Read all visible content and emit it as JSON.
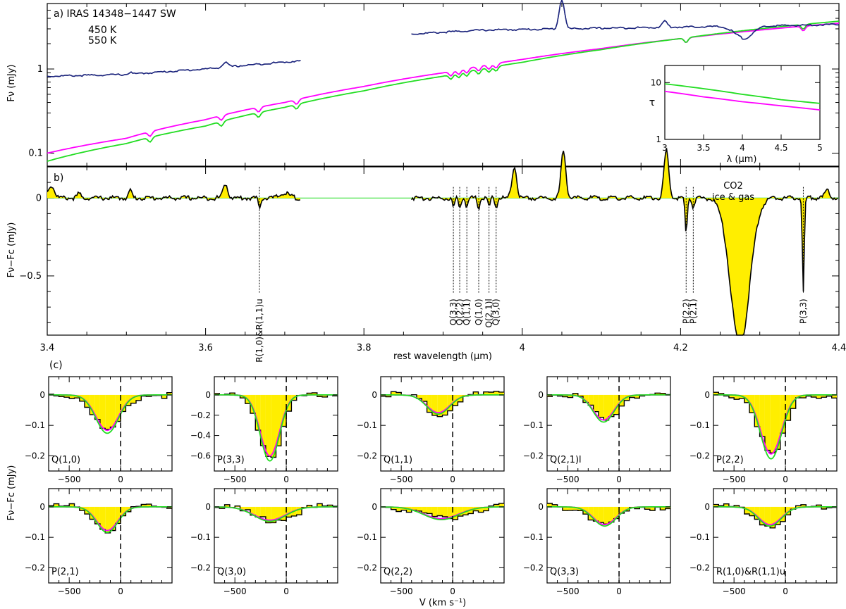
{
  "colors": {
    "c450": "#ff00ff",
    "c550": "#22dd22",
    "obs": "#1a237e",
    "fill": "#ffee00",
    "black": "#000000"
  },
  "panel_a": {
    "label": "a) IRAS 14348−1447 SW",
    "legend": [
      "450 K",
      "550 K"
    ],
    "ylabel": "Fν (mJy)"
  },
  "inset": {
    "ylabel": "τ",
    "xlabel": "λ (μm)"
  },
  "panel_b": {
    "label": "b)",
    "ylabel": "Fν−Fc (mJy)",
    "xlabel": "rest wavelength (μm)",
    "co2_label": [
      "CO2",
      "ice & gas"
    ]
  },
  "panel_c": {
    "label": "(c)",
    "ylabel": "Fν−Fc (mJy)",
    "xlabel": "V (km s⁻¹)"
  },
  "chart_data": [
    {
      "id": "a",
      "type": "line",
      "xlim": [
        3.4,
        4.4
      ],
      "yscale": "log",
      "ylim": [
        0.07,
        6
      ],
      "yticks": [
        0.1,
        1
      ],
      "yticklabels": [
        "0.1",
        "1"
      ],
      "series": [
        {
          "name": "450 K",
          "x": [
            3.4,
            3.5,
            3.6,
            3.7,
            3.8,
            3.9,
            4.0,
            4.1,
            4.2,
            4.3,
            4.4
          ],
          "y": [
            0.1,
            0.15,
            0.25,
            0.4,
            0.62,
            0.9,
            1.3,
            1.75,
            2.3,
            2.9,
            3.5
          ]
        },
        {
          "name": "550 K",
          "x": [
            3.4,
            3.5,
            3.6,
            3.7,
            3.8,
            3.9,
            4.0,
            4.1,
            4.2,
            4.3,
            4.4
          ],
          "y": [
            0.08,
            0.13,
            0.21,
            0.35,
            0.55,
            0.82,
            1.2,
            1.7,
            2.3,
            3.0,
            3.7
          ]
        },
        {
          "x": [
            3.4,
            3.5,
            3.6,
            3.72
          ],
          "y": [
            0.82,
            0.86,
            1.0,
            1.25
          ],
          "gap_after": true
        },
        {
          "x": [
            3.86,
            3.95,
            4.05,
            4.15,
            4.25,
            4.35,
            4.4
          ],
          "y": [
            2.6,
            2.9,
            3.0,
            3.1,
            3.2,
            3.3,
            3.4
          ]
        }
      ],
      "features": [
        {
          "x": 4.05,
          "peak": 6.5
        },
        {
          "x": 4.18,
          "peak": 3.5
        },
        {
          "x": 4.28,
          "trough": 2.2
        }
      ]
    },
    {
      "id": "inset",
      "type": "line",
      "xlim": [
        3,
        5
      ],
      "ylim": [
        1,
        20
      ],
      "yscale": "log",
      "xticks": [
        3,
        3.5,
        4,
        4.5,
        5
      ],
      "xticklabels": [
        "3",
        "3.5",
        "4",
        "4.5",
        "5"
      ],
      "yticks": [
        1,
        10
      ],
      "yticklabels": [
        "1",
        "10"
      ],
      "series": [
        {
          "name": "550 K",
          "x": [
            3,
            3.5,
            4,
            4.5,
            5
          ],
          "y": [
            9.5,
            7.8,
            6.2,
            5.0,
            4.3
          ]
        },
        {
          "name": "450 K",
          "x": [
            3,
            3.5,
            4,
            4.5,
            5
          ],
          "y": [
            7.0,
            5.6,
            4.6,
            3.9,
            3.3
          ]
        }
      ]
    },
    {
      "id": "b",
      "type": "line",
      "xlim": [
        3.4,
        4.4
      ],
      "ylim": [
        -0.88,
        0.2
      ],
      "xticks": [
        3.4,
        3.6,
        3.8,
        4,
        4.2,
        4.4
      ],
      "xticklabels": [
        "3.4",
        "3.6",
        "3.8",
        "4",
        "4.2",
        "4.4"
      ],
      "yticks": [
        0,
        -0.5
      ],
      "yticklabels": [
        "0",
        "−0.5"
      ],
      "line_labels": [
        {
          "label": "R(1,0)&R(1,1)u",
          "x": 3.668
        },
        {
          "label": "Q(3,3)",
          "x": 3.913
        },
        {
          "label": "Q(2,2)",
          "x": 3.921
        },
        {
          "label": "Q(1,1)",
          "x": 3.93
        },
        {
          "label": "Q(1,0)",
          "x": 3.945
        },
        {
          "label": "Q(2,1)l",
          "x": 3.958
        },
        {
          "label": "Q(3,0)",
          "x": 3.967
        },
        {
          "label": "P(2,2)",
          "x": 4.207
        },
        {
          "label": "P(2,1)",
          "x": 4.216
        },
        {
          "label": "P(3,3)",
          "x": 4.355
        }
      ]
    },
    {
      "id": "c",
      "type": "line",
      "xlim": [
        -700,
        500
      ],
      "xticks": [
        -500,
        0
      ],
      "xticklabels": [
        "−500",
        "0"
      ],
      "panels": [
        {
          "name": "Q(1,0)",
          "ylim": [
            -0.25,
            0.06
          ],
          "yticks": [
            0,
            -0.1,
            -0.2
          ],
          "yticklabels": [
            "0",
            "−0.1",
            "−0.2"
          ],
          "depth": 0.12,
          "center": -120,
          "width": 130
        },
        {
          "name": "P(3,3)",
          "ylim": [
            -0.75,
            0.18
          ],
          "yticks": [
            0,
            -0.2,
            -0.4,
            -0.6
          ],
          "yticklabels": [
            "0",
            "−0.2",
            "−0.4",
            "−0.6"
          ],
          "depth": 0.62,
          "center": -150,
          "width": 110
        },
        {
          "name": "Q(1,1)",
          "ylim": [
            -0.25,
            0.06
          ],
          "yticks": [
            0,
            -0.1,
            -0.2
          ],
          "yticklabels": [
            "0",
            "−0.1",
            "−0.2"
          ],
          "depth": 0.06,
          "center": -130,
          "width": 130
        },
        {
          "name": "Q(2,1)l",
          "ylim": [
            -0.25,
            0.06
          ],
          "yticks": [
            0,
            -0.1,
            -0.2
          ],
          "yticklabels": [
            "0",
            "−0.1",
            "−0.2"
          ],
          "depth": 0.085,
          "center": -140,
          "width": 120
        },
        {
          "name": "P(2,2)",
          "ylim": [
            -0.25,
            0.06
          ],
          "yticks": [
            0,
            -0.1,
            -0.2
          ],
          "yticklabels": [
            "0",
            "−0.1",
            "−0.2"
          ],
          "depth": 0.2,
          "center": -130,
          "width": 120
        },
        {
          "name": "P(2,1)",
          "ylim": [
            -0.25,
            0.06
          ],
          "yticks": [
            0,
            -0.1,
            -0.2
          ],
          "yticklabels": [
            "0",
            "−0.1",
            "−0.2"
          ],
          "depth": 0.08,
          "center": -120,
          "width": 120
        },
        {
          "name": "Q(3,0)",
          "ylim": [
            -0.25,
            0.06
          ],
          "yticks": [
            0,
            -0.1,
            -0.2
          ],
          "yticklabels": [
            "0",
            "−0.1",
            "−0.2"
          ],
          "depth": 0.045,
          "center": -150,
          "width": 180
        },
        {
          "name": "Q(2,2)",
          "ylim": [
            -0.25,
            0.06
          ],
          "yticks": [
            0,
            -0.1,
            -0.2
          ],
          "yticklabels": [
            "0",
            "−0.1",
            "−0.2"
          ],
          "depth": 0.04,
          "center": -100,
          "width": 200
        },
        {
          "name": "Q(3,3)",
          "ylim": [
            -0.25,
            0.06
          ],
          "yticks": [
            0,
            -0.1,
            -0.2
          ],
          "yticklabels": [
            "0",
            "−0.1",
            "−0.2"
          ],
          "depth": 0.06,
          "center": -130,
          "width": 130
        },
        {
          "name": "R(1,0)&R(1,1)u",
          "ylim": [
            -0.25,
            0.06
          ],
          "yticks": [
            0,
            -0.1,
            -0.2
          ],
          "yticklabels": [
            "0",
            "−0.1",
            "−0.2"
          ],
          "depth": 0.06,
          "center": -140,
          "width": 130
        }
      ]
    }
  ]
}
